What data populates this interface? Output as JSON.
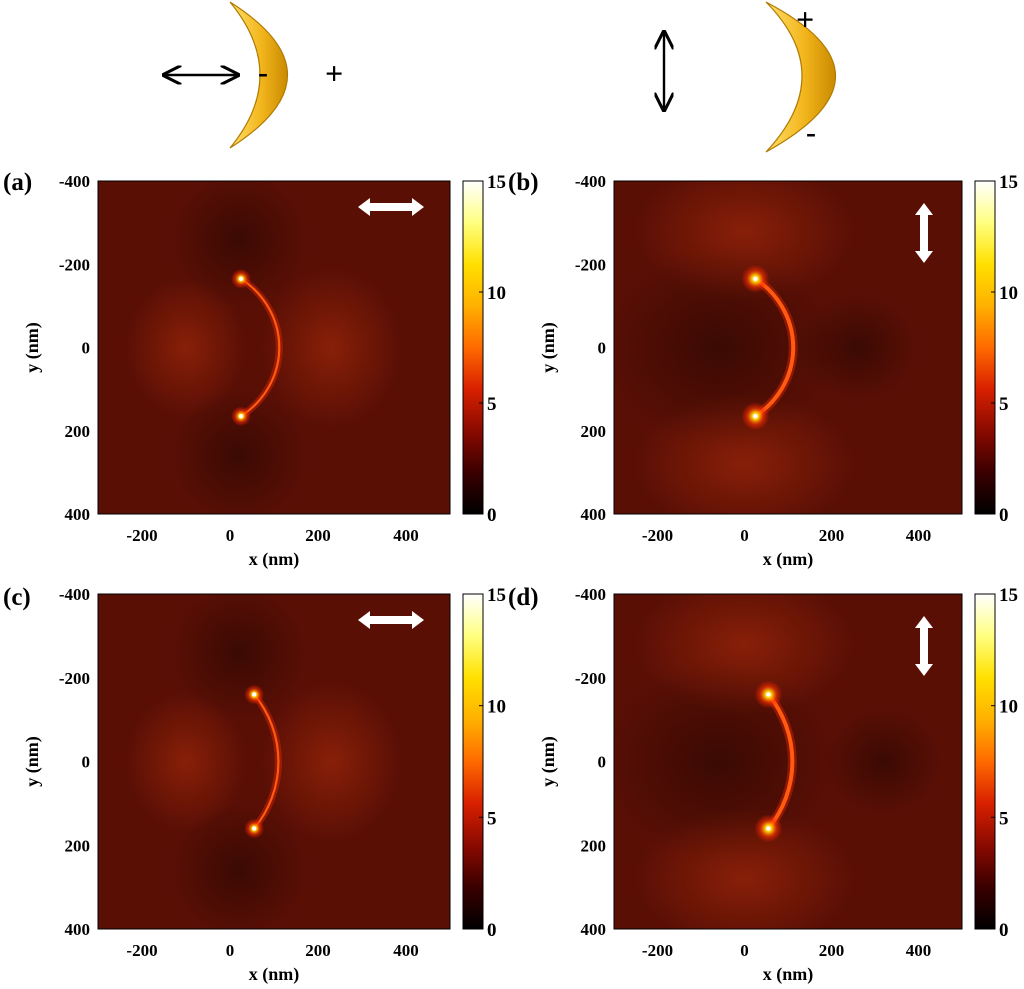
{
  "schematic": {
    "left": {
      "minus": "-",
      "plus": "+",
      "polarization": "horizontal"
    },
    "right": {
      "minus": "-",
      "plus": "+",
      "polarization": "vertical"
    },
    "colors": {
      "crescent": "#f2b51c",
      "charge": "#1f2ccf",
      "arrow": "#000000"
    }
  },
  "colormap": {
    "stops": [
      "#000000",
      "#3a0000",
      "#8a0a00",
      "#d82000",
      "#ff6a00",
      "#ffb000",
      "#ffe000",
      "#ffff80",
      "#ffffff"
    ],
    "background": "#5a0f05"
  },
  "chart_data": [
    {
      "type": "heatmap",
      "panel_label": "(a)",
      "xlabel": "x (nm)",
      "ylabel": "y (nm)",
      "xlim": [
        -300,
        500
      ],
      "ylim": [
        -400,
        400
      ],
      "y_inverted": true,
      "xticks": [
        "-200",
        "0",
        "200",
        "400"
      ],
      "xtick_values": [
        -200,
        0,
        200,
        400
      ],
      "yticks": [
        "-400",
        "-200",
        "0",
        "200",
        "400"
      ],
      "ytick_values": [
        -400,
        -200,
        0,
        200,
        400
      ],
      "colorbar": {
        "min": 0,
        "max": 15,
        "ticks": [
          "0",
          "5",
          "10",
          "15"
        ],
        "tick_values": [
          0,
          5,
          10,
          15
        ]
      },
      "polarization": "horizontal",
      "crescent": {
        "outer_radius": 200,
        "outer_center_x": 0,
        "inner_radius": 200,
        "inner_center_x": -100,
        "tip_x": 25,
        "tip_y": 165
      },
      "hotspots": [
        [
          25,
          -165
        ],
        [
          25,
          165
        ]
      ]
    },
    {
      "type": "heatmap",
      "panel_label": "(b)",
      "xlabel": "x (nm)",
      "ylabel": "y (nm)",
      "xlim": [
        -300,
        500
      ],
      "ylim": [
        -400,
        400
      ],
      "y_inverted": true,
      "xticks": [
        "-200",
        "0",
        "200",
        "400"
      ],
      "xtick_values": [
        -200,
        0,
        200,
        400
      ],
      "yticks": [
        "-400",
        "-200",
        "0",
        "200",
        "400"
      ],
      "ytick_values": [
        -400,
        -200,
        0,
        200,
        400
      ],
      "colorbar": {
        "min": 0,
        "max": 15,
        "ticks": [
          "0",
          "5",
          "10",
          "15"
        ],
        "tick_values": [
          0,
          5,
          10,
          15
        ]
      },
      "polarization": "vertical",
      "crescent": {
        "outer_radius": 200,
        "outer_center_x": 0,
        "inner_radius": 200,
        "inner_center_x": -100,
        "tip_x": 25,
        "tip_y": 165
      },
      "hotspots": [
        [
          25,
          -165
        ],
        [
          25,
          165
        ]
      ]
    },
    {
      "type": "heatmap",
      "panel_label": "(c)",
      "xlabel": "x (nm)",
      "ylabel": "y (nm)",
      "xlim": [
        -300,
        500
      ],
      "ylim": [
        -400,
        400
      ],
      "y_inverted": true,
      "xticks": [
        "-200",
        "0",
        "200",
        "400"
      ],
      "xtick_values": [
        -200,
        0,
        200,
        400
      ],
      "yticks": [
        "-400",
        "-200",
        "0",
        "200",
        "400"
      ],
      "ytick_values": [
        -400,
        -200,
        0,
        200,
        400
      ],
      "colorbar": {
        "min": 0,
        "max": 15,
        "ticks": [
          "0",
          "5",
          "10",
          "15"
        ],
        "tick_values": [
          0,
          5,
          10,
          15
        ]
      },
      "polarization": "horizontal",
      "crescent": {
        "outer_radius": 260,
        "outer_center_x": 0,
        "inner_radius": 260,
        "inner_center_x": -125,
        "tip_x": 55,
        "tip_y": 160
      },
      "hotspots": [
        [
          55,
          -160
        ],
        [
          55,
          160
        ]
      ]
    },
    {
      "type": "heatmap",
      "panel_label": "(d)",
      "xlabel": "x (nm)",
      "ylabel": "y (nm)",
      "xlim": [
        -300,
        500
      ],
      "ylim": [
        -400,
        400
      ],
      "y_inverted": true,
      "xticks": [
        "-200",
        "0",
        "200",
        "400"
      ],
      "xtick_values": [
        -200,
        0,
        200,
        400
      ],
      "yticks": [
        "-400",
        "-200",
        "0",
        "200",
        "400"
      ],
      "ytick_values": [
        -400,
        -200,
        0,
        200,
        400
      ],
      "colorbar": {
        "min": 0,
        "max": 15,
        "ticks": [
          "0",
          "5",
          "10",
          "15"
        ],
        "tick_values": [
          0,
          5,
          10,
          15
        ]
      },
      "polarization": "vertical",
      "crescent": {
        "outer_radius": 260,
        "outer_center_x": 0,
        "inner_radius": 260,
        "inner_center_x": -125,
        "tip_x": 55,
        "tip_y": 160
      },
      "hotspots": [
        [
          55,
          -160
        ],
        [
          55,
          160
        ]
      ]
    }
  ]
}
